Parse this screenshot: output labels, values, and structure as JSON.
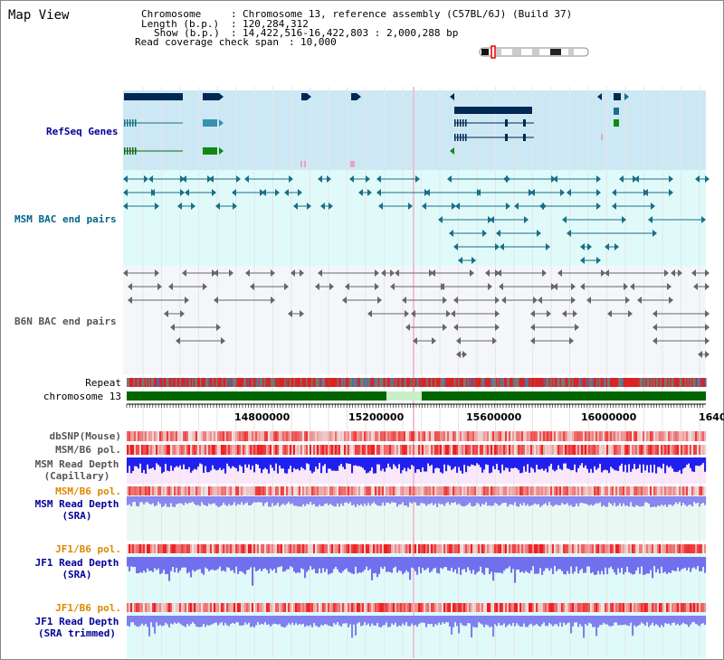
{
  "title": "Map View",
  "info": {
    "chromosome_label": "Chromosome",
    "chromosome_value": "Chromosome 13, reference assembly (C57BL/6J) (Build 37)",
    "length_label": "Length (b.p.)",
    "length_value": "120,284,312",
    "show_label": "Show (b.p.)",
    "show_value": "14,422,516-16,422,803 : 2,000,288 bp",
    "coverage_label": "Read coverage check span",
    "coverage_value": "10,000"
  },
  "tracks": {
    "refseq": "RefSeq Genes",
    "msm_bac": "MSM BAC end pairs",
    "b6n_bac": "B6N BAC end pairs",
    "repeat": "Repeat",
    "chromosome": "chromosome 13",
    "dbsnp": "dbSNP(Mouse)",
    "msm_b6_pol_1": "MSM/B6 pol.",
    "msm_read_depth_cap_1": "MSM Read Depth",
    "msm_read_depth_cap_2": "(Capillary)",
    "msm_b6_pol_2": "MSM/B6 pol.",
    "msm_read_depth_sra_1": "MSM Read Depth",
    "msm_read_depth_sra_2": "(SRA)",
    "jf1_b6_pol_1": "JF1/B6 pol.",
    "jf1_read_depth_sra_1": "JF1 Read Depth",
    "jf1_read_depth_sra_2": "(SRA)",
    "jf1_b6_pol_2": "JF1/B6 pol.",
    "jf1_read_depth_trim_1": "JF1 Read Depth",
    "jf1_read_depth_trim_2": "(SRA trimmed)"
  },
  "axis": {
    "ticks": [
      "14800000",
      "15200000",
      "15600000",
      "16000000",
      "1640"
    ]
  },
  "colors": {
    "refseq_bg": "#cce8f4",
    "msm_bg": "#e0fafa",
    "b6n_bg": "#f4f6fa",
    "gene_dark": "#002855",
    "teal": "#1a6e88",
    "gray_feature": "#666666",
    "chrom_green": "#006600",
    "depth_blue": "#2020ee",
    "depth_light": "#7070ee",
    "pol_red": "#ee2020",
    "label_blue": "#000099",
    "label_teal": "#006688",
    "label_orange": "#dd8800",
    "label_gray": "#555555"
  }
}
